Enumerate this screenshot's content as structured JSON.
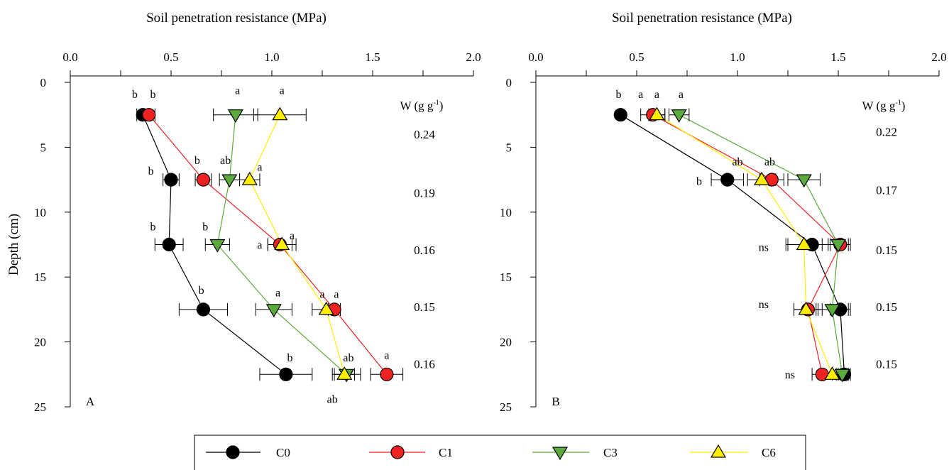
{
  "colors": {
    "C0": "#000000",
    "C1": "#ee2222",
    "C3": "#5aab3c",
    "C6": "#ffee00",
    "stroke": "#000000"
  },
  "markers": {
    "C0": "circle",
    "C1": "circle",
    "C3": "triangle-down",
    "C6": "triangle-up"
  },
  "legend": {
    "items": [
      "C0",
      "C1",
      "C3",
      "C6"
    ]
  },
  "chart_data": [
    {
      "type": "line",
      "panel_label": "A",
      "xlabel": "Soil penetration resistance (MPa)",
      "ylabel": "Depth (cm)",
      "xlim": [
        0,
        2.0
      ],
      "ylim": [
        0,
        25
      ],
      "xticks": [
        0,
        0.25,
        0.5,
        0.75,
        1.0,
        1.25,
        1.5,
        1.75,
        2.0
      ],
      "xtick_labels": [
        "0.0",
        "",
        "0.5",
        "",
        "1.0",
        "",
        "1.5",
        "",
        "2.0"
      ],
      "yticks": [
        0,
        5,
        10,
        15,
        20,
        25
      ],
      "ytick_labels": [
        "0",
        "5",
        "10",
        "15",
        "20",
        "25"
      ],
      "w_header": "W (g g",
      "w_sup": "-1",
      "w_close": ")",
      "w_values": [
        {
          "depth": 4,
          "label": "0.24"
        },
        {
          "depth": 8.5,
          "label": "0.19"
        },
        {
          "depth": 12.9,
          "label": "0.16"
        },
        {
          "depth": 17.3,
          "label": "0.15"
        },
        {
          "depth": 21.7,
          "label": "0.16"
        }
      ],
      "series": [
        {
          "name": "C0",
          "depth": [
            2.5,
            7.5,
            12.5,
            17.5,
            22.5
          ],
          "x": [
            0.36,
            0.5,
            0.49,
            0.66,
            1.07
          ],
          "err": [
            0.03,
            0.04,
            0.07,
            0.12,
            0.13
          ]
        },
        {
          "name": "C1",
          "depth": [
            2.5,
            7.5,
            12.5,
            17.5,
            22.5
          ],
          "x": [
            0.39,
            0.66,
            1.04,
            1.31,
            1.57
          ],
          "err": [
            0.03,
            0.04,
            0.06,
            0.03,
            0.08
          ]
        },
        {
          "name": "C3",
          "depth": [
            2.5,
            7.5,
            12.5,
            17.5,
            22.5
          ],
          "x": [
            0.82,
            0.79,
            0.73,
            1.01,
            1.37
          ],
          "err": [
            0.11,
            0.05,
            0.06,
            0.09,
            0.07
          ]
        },
        {
          "name": "C6",
          "depth": [
            2.5,
            7.5,
            12.5,
            17.5,
            22.5
          ],
          "x": [
            1.04,
            0.89,
            1.05,
            1.27,
            1.36
          ],
          "err": [
            0.13,
            0.05,
            0.07,
            0.07,
            0.05
          ]
        }
      ],
      "annotations": [
        {
          "text": "b",
          "x": 0.32,
          "depth": 1.2
        },
        {
          "text": "b",
          "x": 0.41,
          "depth": 1.2
        },
        {
          "text": "a",
          "x": 0.83,
          "depth": 0.9
        },
        {
          "text": "a",
          "x": 1.05,
          "depth": 0.9
        },
        {
          "text": "b",
          "x": 0.4,
          "depth": 7.1
        },
        {
          "text": "b",
          "x": 0.63,
          "depth": 6.3
        },
        {
          "text": "ab",
          "x": 0.77,
          "depth": 6.3
        },
        {
          "text": "a",
          "x": 0.94,
          "depth": 6.8
        },
        {
          "text": "b",
          "x": 0.41,
          "depth": 11.4
        },
        {
          "text": "b",
          "x": 0.67,
          "depth": 11.4
        },
        {
          "text": "a",
          "x": 0.94,
          "depth": 12.8
        },
        {
          "text": "a",
          "x": 1.1,
          "depth": 12.1
        },
        {
          "text": "b",
          "x": 0.65,
          "depth": 16.3
        },
        {
          "text": "a",
          "x": 1.03,
          "depth": 16.5
        },
        {
          "text": "a",
          "x": 1.25,
          "depth": 16.6
        },
        {
          "text": "a",
          "x": 1.32,
          "depth": 16.6
        },
        {
          "text": "b",
          "x": 1.09,
          "depth": 21.5
        },
        {
          "text": "ab",
          "x": 1.38,
          "depth": 21.5
        },
        {
          "text": "a",
          "x": 1.57,
          "depth": 21.3
        },
        {
          "text": "ab",
          "x": 1.3,
          "depth": 24.7
        }
      ]
    },
    {
      "type": "line",
      "panel_label": "B",
      "xlabel": "Soil penetration resistance (MPa)",
      "ylabel": "",
      "xlim": [
        0,
        2.0
      ],
      "ylim": [
        0,
        25
      ],
      "xticks": [
        0,
        0.25,
        0.5,
        0.75,
        1.0,
        1.25,
        1.5,
        1.75,
        2.0
      ],
      "xtick_labels": [
        "0.0",
        "",
        "0.5",
        "",
        "1.0",
        "",
        "1.5",
        "",
        "2.0"
      ],
      "yticks": [
        0,
        5,
        10,
        15,
        20,
        25
      ],
      "ytick_labels": [
        "0",
        "5",
        "10",
        "15",
        "20",
        "25"
      ],
      "w_header": "W (g g",
      "w_sup": "-1",
      "w_close": ")",
      "w_values": [
        {
          "depth": 3.8,
          "label": "0.22"
        },
        {
          "depth": 8.3,
          "label": "0.17"
        },
        {
          "depth": 12.9,
          "label": "0.15"
        },
        {
          "depth": 17.3,
          "label": "0.15"
        },
        {
          "depth": 21.7,
          "label": "0.15"
        }
      ],
      "series": [
        {
          "name": "C0",
          "depth": [
            2.5,
            7.5,
            12.5,
            17.5,
            22.5
          ],
          "x": [
            0.42,
            0.95,
            1.37,
            1.51,
            1.53
          ],
          "err": [
            0.0,
            0.08,
            0.12,
            0.05,
            0.03
          ]
        },
        {
          "name": "C1",
          "depth": [
            2.5,
            7.5,
            12.5,
            17.5,
            22.5
          ],
          "x": [
            0.58,
            1.17,
            1.51,
            1.35,
            1.42
          ],
          "err": [
            0.06,
            0.06,
            0.05,
            0.07,
            0.05
          ]
        },
        {
          "name": "C3",
          "depth": [
            2.5,
            7.5,
            12.5,
            17.5,
            22.5
          ],
          "x": [
            0.71,
            1.33,
            1.5,
            1.47,
            1.52
          ],
          "err": [
            0.05,
            0.08,
            0.05,
            0.08,
            0.03
          ]
        },
        {
          "name": "C6",
          "depth": [
            2.5,
            7.5,
            12.5,
            17.5,
            22.5
          ],
          "x": [
            0.6,
            1.12,
            1.33,
            1.34,
            1.47
          ],
          "err": [
            0.04,
            0.07,
            0.09,
            0.06,
            0.04
          ]
        }
      ],
      "annotations": [
        {
          "text": "b",
          "x": 0.41,
          "depth": 1.2
        },
        {
          "text": "a",
          "x": 0.52,
          "depth": 1.2
        },
        {
          "text": "a",
          "x": 0.6,
          "depth": 1.2
        },
        {
          "text": "a",
          "x": 0.72,
          "depth": 1.2
        },
        {
          "text": "ab",
          "x": 1.0,
          "depth": 6.4
        },
        {
          "text": "ab",
          "x": 1.16,
          "depth": 6.4
        },
        {
          "text": "b",
          "x": 0.81,
          "depth": 7.9
        },
        {
          "text": "ns",
          "x": 1.13,
          "depth": 13.0
        },
        {
          "text": "ns",
          "x": 1.13,
          "depth": 17.4
        },
        {
          "text": "ns",
          "x": 1.26,
          "depth": 22.8
        }
      ]
    }
  ]
}
